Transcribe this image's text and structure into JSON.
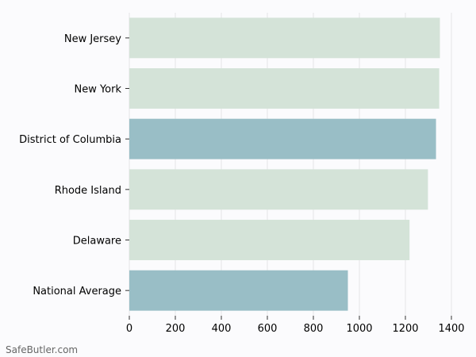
{
  "chart_data": {
    "type": "bar",
    "orientation": "horizontal",
    "categories": [
      "New Jersey",
      "New York",
      "District of Columbia",
      "Rhode Island",
      "Delaware",
      "National Average"
    ],
    "values": [
      1350,
      1347,
      1333,
      1298,
      1218,
      950
    ],
    "highlighted": [
      "District of Columbia",
      "National Average"
    ],
    "xlim": [
      0,
      1400
    ],
    "xticks": [
      0,
      200,
      400,
      600,
      800,
      1000,
      1200,
      1400
    ],
    "title": "",
    "xlabel": "",
    "ylabel": "",
    "grid": "vertical",
    "colors": {
      "bar": "#d4e3d8",
      "highlight": "#99bec6",
      "grid": "#e6e6e6",
      "axis": "#333333"
    }
  },
  "watermark": "SafeButler.com"
}
